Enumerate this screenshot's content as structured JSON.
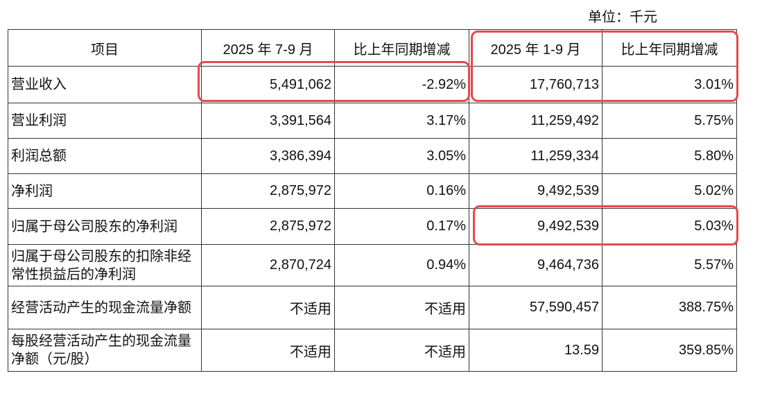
{
  "unit_label": "单位：千元",
  "headers": [
    "项目",
    "2025 年 7-9 月",
    "比上年同期增减",
    "2025 年 1-9 月",
    "比上年同期增减"
  ],
  "rows": [
    [
      "营业收入",
      "5,491,062",
      "-2.92%",
      "17,760,713",
      "3.01%"
    ],
    [
      "营业利润",
      "3,391,564",
      "3.17%",
      "11,259,492",
      "5.75%"
    ],
    [
      "利润总额",
      "3,386,394",
      "3.05%",
      "11,259,334",
      "5.80%"
    ],
    [
      "净利润",
      "2,875,972",
      "0.16%",
      "9,492,539",
      "5.02%"
    ],
    [
      "归属于母公司股东的净利润",
      "2,875,972",
      "0.17%",
      "9,492,539",
      "5.03%"
    ],
    [
      "归属于母公司股东的扣除非经常性损益后的净利润",
      "2,870,724",
      "0.94%",
      "9,464,736",
      "5.57%"
    ],
    [
      "经营活动产生的现金流量净额",
      "不适用",
      "不适用",
      "57,590,457",
      "388.75%"
    ],
    [
      "每股经营活动产生的现金流量净额（元/股）",
      "不适用",
      "不适用",
      "13.59",
      "359.85%"
    ]
  ],
  "highlight_color": "#e8474f"
}
